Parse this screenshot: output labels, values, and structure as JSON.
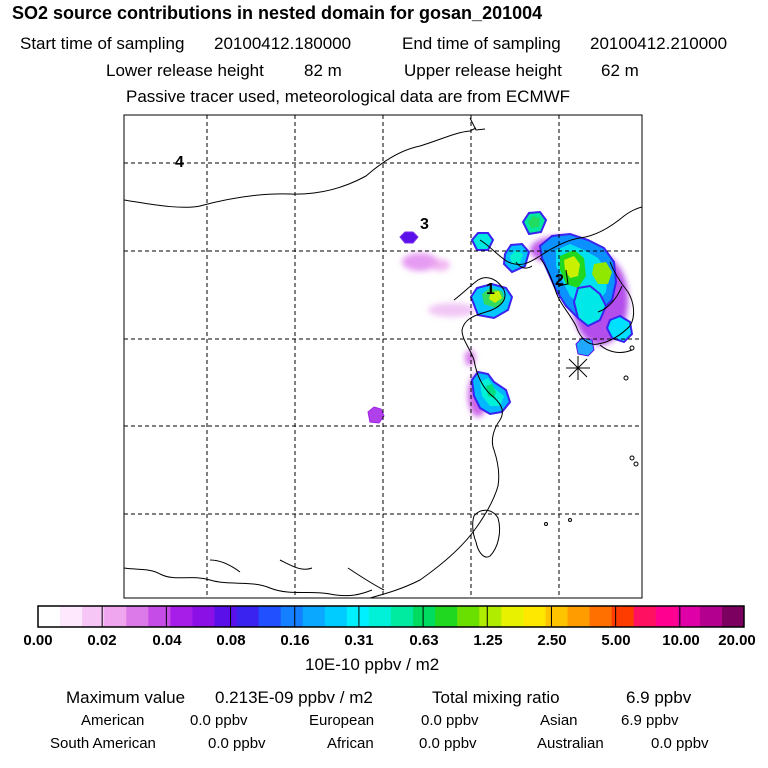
{
  "title": "SO2 source contributions in nested domain for gosan_201004",
  "sampling": {
    "start_label": "Start time of sampling",
    "start_value": "20100412.180000",
    "end_label": "End time of sampling",
    "end_value": "20100412.210000"
  },
  "release": {
    "lower_label": "Lower release height",
    "lower_value": "82 m",
    "upper_label": "Upper release height",
    "upper_value": "62 m"
  },
  "note": "Passive tracer used, meteorological data are from ECMWF",
  "map": {
    "region_labels": [
      "1",
      "2",
      "3",
      "4"
    ],
    "receptor": "gosan-receptor-star"
  },
  "colorbar": {
    "colors": [
      "#ffffff",
      "#fde8fd",
      "#f6c6f6",
      "#efa6ef",
      "#dd7ae9",
      "#c64ce8",
      "#a81ee9",
      "#8a10e6",
      "#5a10e8",
      "#3a22f0",
      "#2050ff",
      "#1480ff",
      "#0aa8ff",
      "#00ccff",
      "#00f0ff",
      "#00f0d8",
      "#00eaa0",
      "#00dc60",
      "#20d820",
      "#6ae000",
      "#b0ec00",
      "#e8f200",
      "#ffe800",
      "#ffc400",
      "#ff9c00",
      "#ff7000",
      "#ff3c00",
      "#ff1060",
      "#ff0090",
      "#e000a8",
      "#b4008e",
      "#7c0060"
    ],
    "ticks": [
      "0.00",
      "0.02",
      "0.04",
      "0.08",
      "0.16",
      "0.31",
      "0.63",
      "1.25",
      "2.50",
      "5.00",
      "10.00",
      "20.00"
    ],
    "unit": "10E-10 ppbv / m2"
  },
  "stats": {
    "max_label": "Maximum value",
    "max_value": "0.213E-09 ppbv / m2",
    "total_label": "Total mixing ratio",
    "total_value": "6.9 ppbv",
    "american_label": "American",
    "american_value": "0.0 ppbv",
    "european_label": "European",
    "european_value": "0.0 ppbv",
    "asian_label": "Asian",
    "asian_value": "6.9 ppbv",
    "south_american_label": "South American",
    "south_american_value": "0.0 ppbv",
    "african_label": "African",
    "african_value": "0.0 ppbv",
    "australian_label": "Australian",
    "australian_value": "0.0 ppbv"
  }
}
